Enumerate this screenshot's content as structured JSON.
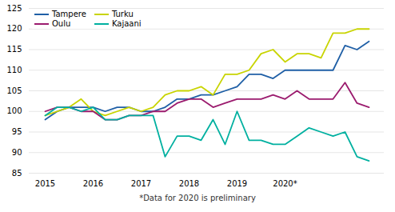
{
  "chart_data": {
    "type": "line",
    "categories": [
      "2015",
      null,
      null,
      null,
      "2016",
      null,
      null,
      null,
      "2017",
      null,
      null,
      null,
      "2018",
      null,
      null,
      null,
      "2019",
      null,
      null,
      null,
      "2020*",
      null,
      null,
      null,
      null,
      null,
      null,
      null
    ],
    "series": [
      {
        "name": "Tampere",
        "color": "#1f5fa6",
        "values": [
          98,
          100,
          101,
          101,
          101,
          100,
          101,
          101,
          100,
          100,
          101,
          103,
          103,
          104,
          104,
          105,
          106,
          109,
          109,
          108,
          110,
          110,
          110,
          110,
          110,
          116,
          115,
          117
        ]
      },
      {
        "name": "Turku",
        "color": "#c8d400",
        "values": [
          99,
          100,
          101,
          103,
          100,
          99,
          100,
          101,
          100,
          101,
          104,
          105,
          105,
          106,
          104,
          109,
          109,
          110,
          114,
          115,
          112,
          114,
          114,
          113,
          119,
          119,
          120,
          120
        ]
      },
      {
        "name": "Oulu",
        "color": "#9b1b6e",
        "values": [
          100,
          101,
          101,
          100,
          100,
          98,
          98,
          99,
          99,
          100,
          100,
          102,
          103,
          103,
          101,
          102,
          103,
          103,
          103,
          104,
          103,
          105,
          103,
          103,
          103,
          107,
          102,
          101
        ]
      },
      {
        "name": "Kajaani",
        "color": "#00b0a0",
        "values": [
          99,
          101,
          101,
          100,
          101,
          98,
          98,
          99,
          99,
          99,
          89,
          94,
          94,
          93,
          98,
          92,
          100,
          93,
          93,
          92,
          92,
          94,
          96,
          95,
          94,
          95,
          89,
          88
        ]
      }
    ],
    "ylim": [
      85,
      125
    ],
    "yticks": [
      85,
      90,
      95,
      100,
      105,
      110,
      115,
      120,
      125
    ],
    "grid": true,
    "legend": "upper left",
    "annotation": "*Data for 2020 is preliminary"
  }
}
